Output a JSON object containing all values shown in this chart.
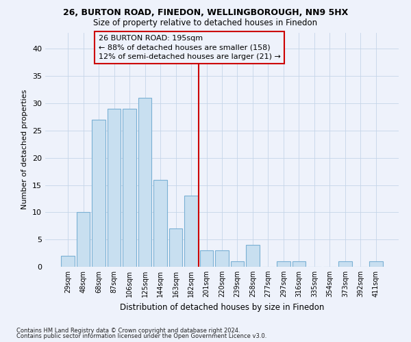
{
  "title1": "26, BURTON ROAD, FINEDON, WELLINGBOROUGH, NN9 5HX",
  "title2": "Size of property relative to detached houses in Finedon",
  "xlabel": "Distribution of detached houses by size in Finedon",
  "ylabel": "Number of detached properties",
  "categories": [
    "29sqm",
    "48sqm",
    "68sqm",
    "87sqm",
    "106sqm",
    "125sqm",
    "144sqm",
    "163sqm",
    "182sqm",
    "201sqm",
    "220sqm",
    "239sqm",
    "258sqm",
    "277sqm",
    "297sqm",
    "316sqm",
    "335sqm",
    "354sqm",
    "373sqm",
    "392sqm",
    "411sqm"
  ],
  "values": [
    2,
    10,
    27,
    29,
    29,
    31,
    16,
    7,
    13,
    3,
    3,
    1,
    4,
    0,
    1,
    1,
    0,
    0,
    1,
    0,
    1
  ],
  "bar_color": "#c8dff0",
  "bar_edgecolor": "#7ab0d4",
  "vline_x": 9.0,
  "vline_color": "#cc0000",
  "annotation_text": "26 BURTON ROAD: 195sqm\n← 88% of detached houses are smaller (158)\n12% of semi-detached houses are larger (21) →",
  "ylim": [
    0,
    43
  ],
  "yticks": [
    0,
    5,
    10,
    15,
    20,
    25,
    30,
    35,
    40
  ],
  "footer1": "Contains HM Land Registry data © Crown copyright and database right 2024.",
  "footer2": "Contains public sector information licensed under the Open Government Licence v3.0.",
  "bg_color": "#eef2fb",
  "grid_color": "#c5d5e8",
  "title1_fontsize": 9.0,
  "title2_fontsize": 8.5
}
